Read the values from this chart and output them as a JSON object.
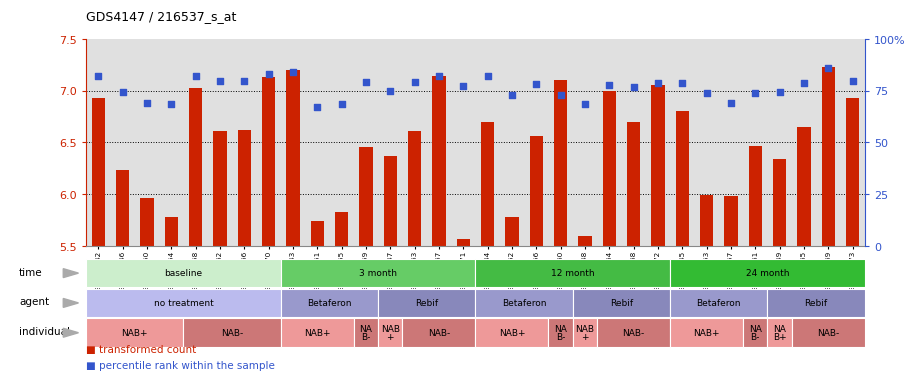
{
  "title": "GDS4147 / 216537_s_at",
  "samples": [
    "GSM641342",
    "GSM641346",
    "GSM641350",
    "GSM641354",
    "GSM641358",
    "GSM641362",
    "GSM641366",
    "GSM641370",
    "GSM641343",
    "GSM641351",
    "GSM641355",
    "GSM641359",
    "GSM641347",
    "GSM641363",
    "GSM641367",
    "GSM641371",
    "GSM641344",
    "GSM641352",
    "GSM641356",
    "GSM641360",
    "GSM641348",
    "GSM641364",
    "GSM641368",
    "GSM641372",
    "GSM641345",
    "GSM641353",
    "GSM641357",
    "GSM641361",
    "GSM641349",
    "GSM641365",
    "GSM641369",
    "GSM641373"
  ],
  "bar_values": [
    6.93,
    6.23,
    5.96,
    5.78,
    7.02,
    6.61,
    6.62,
    7.13,
    7.2,
    5.74,
    5.83,
    6.45,
    6.37,
    6.61,
    7.14,
    5.57,
    6.7,
    5.78,
    6.56,
    7.1,
    5.59,
    7.0,
    6.7,
    7.05,
    6.8,
    5.99,
    5.98,
    6.46,
    6.34,
    6.65,
    7.23,
    6.93
  ],
  "dot_values": [
    7.14,
    6.99,
    6.88,
    6.87,
    7.14,
    7.09,
    7.09,
    7.16,
    7.18,
    6.84,
    6.87,
    7.08,
    7.0,
    7.08,
    7.14,
    7.04,
    7.14,
    6.96,
    7.06,
    6.96,
    6.87,
    7.05,
    7.03,
    7.07,
    7.07,
    6.98,
    6.88,
    6.98,
    6.99,
    7.07,
    7.22,
    7.09
  ],
  "ylim": [
    5.5,
    7.5
  ],
  "yticks": [
    5.5,
    6.0,
    6.5,
    7.0,
    7.5
  ],
  "right_yticks": [
    0,
    25,
    50,
    75,
    100
  ],
  "bar_color": "#CC2200",
  "dot_color": "#3355CC",
  "bg_color": "#FFFFFF",
  "bar_bg_color": "#E0E0E0",
  "time_row": {
    "label": "time",
    "segments": [
      {
        "text": "baseline",
        "start": 0,
        "end": 8,
        "color": "#CCEECC"
      },
      {
        "text": "3 month",
        "start": 8,
        "end": 16,
        "color": "#66CC66"
      },
      {
        "text": "12 month",
        "start": 16,
        "end": 24,
        "color": "#44BB44"
      },
      {
        "text": "24 month",
        "start": 24,
        "end": 32,
        "color": "#33BB33"
      }
    ]
  },
  "agent_row": {
    "label": "agent",
    "segments": [
      {
        "text": "no treatment",
        "start": 0,
        "end": 8,
        "color": "#BBBBEE"
      },
      {
        "text": "Betaferon",
        "start": 8,
        "end": 12,
        "color": "#9999CC"
      },
      {
        "text": "Rebif",
        "start": 12,
        "end": 16,
        "color": "#8888BB"
      },
      {
        "text": "Betaferon",
        "start": 16,
        "end": 20,
        "color": "#9999CC"
      },
      {
        "text": "Rebif",
        "start": 20,
        "end": 24,
        "color": "#8888BB"
      },
      {
        "text": "Betaferon",
        "start": 24,
        "end": 28,
        "color": "#9999CC"
      },
      {
        "text": "Rebif",
        "start": 28,
        "end": 32,
        "color": "#8888BB"
      }
    ]
  },
  "individual_row": {
    "label": "individual",
    "segments": [
      {
        "text": "NAB+",
        "start": 0,
        "end": 4,
        "color": "#EE9999"
      },
      {
        "text": "NAB-",
        "start": 4,
        "end": 8,
        "color": "#CC7777"
      },
      {
        "text": "NAB+",
        "start": 8,
        "end": 11,
        "color": "#EE9999"
      },
      {
        "text": "NA\nB-",
        "start": 11,
        "end": 12,
        "color": "#CC7777"
      },
      {
        "text": "NAB\n+",
        "start": 12,
        "end": 13,
        "color": "#EE9999"
      },
      {
        "text": "NAB-",
        "start": 13,
        "end": 16,
        "color": "#CC7777"
      },
      {
        "text": "NAB+",
        "start": 16,
        "end": 19,
        "color": "#EE9999"
      },
      {
        "text": "NA\nB-",
        "start": 19,
        "end": 20,
        "color": "#CC7777"
      },
      {
        "text": "NAB\n+",
        "start": 20,
        "end": 21,
        "color": "#EE9999"
      },
      {
        "text": "NAB-",
        "start": 21,
        "end": 24,
        "color": "#CC7777"
      },
      {
        "text": "NAB+",
        "start": 24,
        "end": 27,
        "color": "#EE9999"
      },
      {
        "text": "NA\nB-",
        "start": 27,
        "end": 28,
        "color": "#CC7777"
      },
      {
        "text": "NA\nB+",
        "start": 28,
        "end": 29,
        "color": "#EE9999"
      },
      {
        "text": "NAB-",
        "start": 29,
        "end": 32,
        "color": "#CC7777"
      }
    ]
  }
}
